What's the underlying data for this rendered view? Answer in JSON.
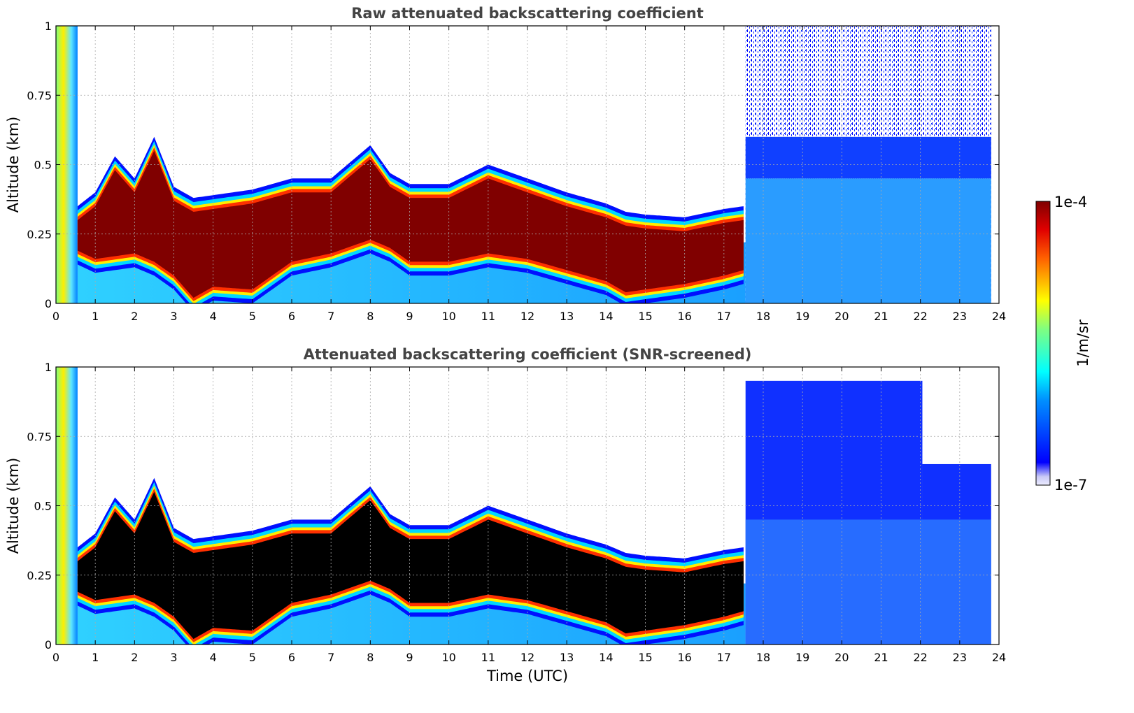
{
  "chart_data": [
    {
      "type": "heatmap",
      "title": "Raw attenuated backscattering coefficient",
      "xlabel": "",
      "ylabel": "Altitude (km)",
      "xlim": [
        0,
        24
      ],
      "ylim": [
        0,
        1
      ],
      "x_ticks": [
        "0",
        "1",
        "2",
        "3",
        "4",
        "5",
        "6",
        "7",
        "8",
        "9",
        "10",
        "11",
        "12",
        "13",
        "14",
        "15",
        "16",
        "17",
        "18",
        "19",
        "20",
        "21",
        "22",
        "23",
        "24"
      ],
      "y_ticks": [
        "0",
        "0.25",
        "0.5",
        "0.75",
        "1"
      ],
      "grid": true,
      "screened": false
    },
    {
      "type": "heatmap",
      "title": "Attenuated backscattering coefficient (SNR-screened)",
      "xlabel": "Time (UTC)",
      "ylabel": "Altitude (km)",
      "xlim": [
        0,
        24
      ],
      "ylim": [
        0,
        1
      ],
      "x_ticks": [
        "0",
        "1",
        "2",
        "3",
        "4",
        "5",
        "6",
        "7",
        "8",
        "9",
        "10",
        "11",
        "12",
        "13",
        "14",
        "15",
        "16",
        "17",
        "18",
        "19",
        "20",
        "21",
        "22",
        "23",
        "24"
      ],
      "y_ticks": [
        "0",
        "0.25",
        "0.5",
        "0.75",
        "1"
      ],
      "grid": true,
      "screened": true
    }
  ],
  "colorbar": {
    "label": "1/m/sr",
    "max_label": "1e-4",
    "min_label": "1e-7",
    "scale": "log",
    "colormap": "jet",
    "range": [
      1e-07,
      0.0001
    ]
  },
  "layer_profile": {
    "time_utc": [
      0.55,
      1,
      1.5,
      2,
      2.5,
      3,
      3.5,
      4,
      5,
      6,
      7,
      8,
      8.5,
      9,
      10,
      11,
      12,
      13,
      14,
      14.5,
      15,
      16,
      17,
      17.5
    ],
    "top_km": [
      0.3,
      0.35,
      0.48,
      0.4,
      0.55,
      0.37,
      0.33,
      0.34,
      0.36,
      0.4,
      0.4,
      0.52,
      0.42,
      0.38,
      0.38,
      0.45,
      0.4,
      0.35,
      0.31,
      0.28,
      0.27,
      0.26,
      0.29,
      0.3
    ],
    "bottom_km": [
      0.19,
      0.16,
      0.17,
      0.18,
      0.15,
      0.1,
      0.02,
      0.06,
      0.05,
      0.15,
      0.18,
      0.23,
      0.2,
      0.15,
      0.15,
      0.18,
      0.16,
      0.12,
      0.08,
      0.04,
      0.05,
      0.07,
      0.1,
      0.12
    ]
  },
  "colors": {
    "layer_core_raw": "#800000",
    "layer_core_screened": "#000000",
    "title": "#444444"
  }
}
